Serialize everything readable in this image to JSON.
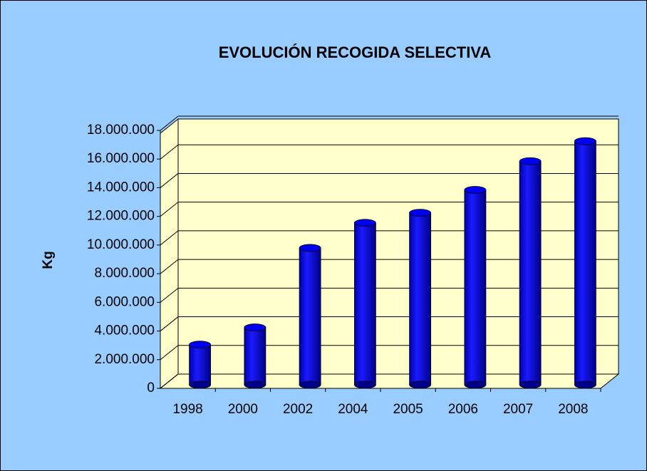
{
  "chart_data": {
    "type": "bar3d",
    "title": "EVOLUCIÓN RECOGIDA SELECTIVA",
    "y_label": "Kg",
    "categories": [
      "1998",
      "2000",
      "2002",
      "2004",
      "2005",
      "2006",
      "2007",
      "2008"
    ],
    "values": [
      2800000,
      4000000,
      9550000,
      11300000,
      12000000,
      13600000,
      15600000,
      17000000
    ],
    "color": "#0000ee",
    "ylim": [
      0,
      18000000
    ],
    "yticks": [
      0,
      {
        "value": 2000000,
        "label": "2.000.000"
      },
      {
        "value": 4000000,
        "label": "4.000.000"
      },
      {
        "value": 6000000,
        "label": "6.000.000"
      },
      {
        "value": 8000000,
        "label": "8.000.000"
      },
      {
        "value": 10000000,
        "label": "10.000.000"
      },
      {
        "value": 12000000,
        "label": "12.000.000"
      },
      {
        "value": 14000000,
        "label": "14.000.000"
      },
      {
        "value": 16000000,
        "label": "16.000.000"
      },
      {
        "value": 18000000,
        "label": "18.000.000"
      }
    ],
    "grid": true
  }
}
